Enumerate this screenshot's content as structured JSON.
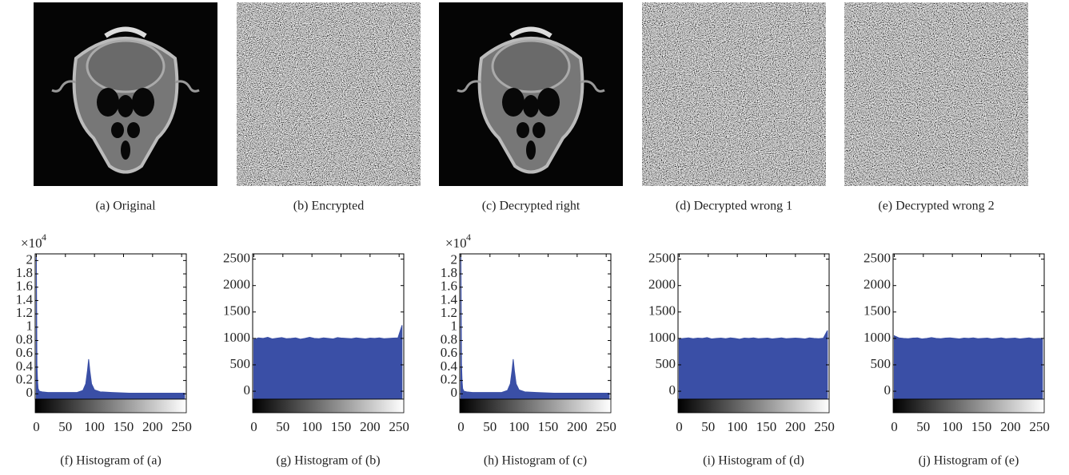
{
  "images": [
    {
      "caption": "(a)  Original",
      "kind": "ct-scan"
    },
    {
      "caption": "(b)  Encrypted",
      "kind": "noise"
    },
    {
      "caption": "(c)  Decrypted right",
      "kind": "ct-scan"
    },
    {
      "caption": "(d)  Decrypted wrong 1",
      "kind": "noise"
    },
    {
      "caption": "(e)  Decrypted wrong 2",
      "kind": "noise"
    }
  ],
  "chart_data": [
    {
      "type": "area",
      "caption": "(f)  Histogram of (a)",
      "y_scale_label": "×10",
      "y_scale_exponent": "4",
      "color": "#3a4fa6",
      "x": [
        0,
        1,
        2,
        3,
        5,
        10,
        20,
        40,
        60,
        70,
        80,
        85,
        88,
        90,
        92,
        95,
        100,
        110,
        130,
        160,
        200,
        255
      ],
      "values": [
        2.1,
        0.45,
        0.2,
        0.08,
        0.04,
        0.03,
        0.02,
        0.02,
        0.02,
        0.02,
        0.05,
        0.15,
        0.35,
        0.52,
        0.35,
        0.15,
        0.06,
        0.03,
        0.02,
        0.01,
        0.01,
        0.01
      ],
      "xlim": [
        -2,
        258
      ],
      "xticks": [
        0,
        50,
        100,
        150,
        200,
        250
      ],
      "ylim": [
        -0.08,
        2.1
      ],
      "yticks": [
        0,
        0.2,
        0.4,
        0.6,
        0.8,
        1,
        1.2,
        1.4,
        1.6,
        1.8,
        2
      ]
    },
    {
      "type": "area",
      "caption": "(g)  Histogram of (b)",
      "color": "#3a4fa6",
      "x": [
        0,
        8,
        16,
        24,
        32,
        40,
        48,
        56,
        64,
        72,
        80,
        88,
        96,
        104,
        112,
        120,
        128,
        136,
        144,
        152,
        160,
        168,
        176,
        184,
        192,
        200,
        208,
        216,
        224,
        232,
        240,
        248,
        255
      ],
      "values": [
        980,
        1010,
        1000,
        1020,
        990,
        1005,
        1015,
        995,
        1000,
        1010,
        985,
        1000,
        1020,
        1000,
        995,
        1010,
        1000,
        990,
        1015,
        1005,
        1000,
        995,
        1010,
        1000,
        990,
        1005,
        1000,
        1010,
        995,
        1000,
        1005,
        1010,
        1250
      ],
      "xlim": [
        -2,
        258
      ],
      "xticks": [
        0,
        50,
        100,
        150,
        200,
        250
      ],
      "ylim": [
        -150,
        2600
      ],
      "yticks": [
        0,
        500,
        1000,
        1500,
        2000,
        2500
      ]
    },
    {
      "type": "area",
      "caption": "(h)  Histogram of (c)",
      "y_scale_label": "×10",
      "y_scale_exponent": "4",
      "color": "#3a4fa6",
      "x": [
        0,
        1,
        2,
        3,
        5,
        10,
        20,
        40,
        60,
        70,
        80,
        85,
        88,
        90,
        92,
        95,
        100,
        110,
        130,
        160,
        200,
        255
      ],
      "values": [
        2.1,
        0.45,
        0.2,
        0.08,
        0.04,
        0.03,
        0.02,
        0.02,
        0.02,
        0.02,
        0.05,
        0.15,
        0.35,
        0.52,
        0.35,
        0.15,
        0.06,
        0.03,
        0.02,
        0.01,
        0.01,
        0.01
      ],
      "xlim": [
        -2,
        258
      ],
      "xticks": [
        0,
        50,
        100,
        150,
        200,
        250
      ],
      "ylim": [
        -0.08,
        2.1
      ],
      "yticks": [
        0,
        0.2,
        0.4,
        0.6,
        0.8,
        1,
        1.2,
        1.4,
        1.6,
        1.8,
        2
      ]
    },
    {
      "type": "area",
      "caption": "(i)  Histogram of (d)",
      "color": "#3a4fa6",
      "x": [
        0,
        8,
        16,
        24,
        32,
        40,
        48,
        56,
        64,
        72,
        80,
        88,
        96,
        104,
        112,
        120,
        128,
        136,
        144,
        152,
        160,
        168,
        176,
        184,
        192,
        200,
        208,
        216,
        224,
        232,
        240,
        248,
        255
      ],
      "values": [
        990,
        1000,
        1010,
        995,
        1005,
        1000,
        1015,
        990,
        1000,
        1005,
        995,
        1010,
        1000,
        985,
        1005,
        1000,
        1010,
        995,
        1000,
        1005,
        990,
        1000,
        1010,
        995,
        1000,
        1005,
        1000,
        990,
        1010,
        1000,
        995,
        1005,
        1150
      ],
      "xlim": [
        -2,
        258
      ],
      "xticks": [
        0,
        50,
        100,
        150,
        200,
        250
      ],
      "ylim": [
        -150,
        2600
      ],
      "yticks": [
        0,
        500,
        1000,
        1500,
        2000,
        2500
      ]
    },
    {
      "type": "area",
      "caption": "(j)  Histogram of (e)",
      "color": "#3a4fa6",
      "x": [
        0,
        8,
        16,
        24,
        32,
        40,
        48,
        56,
        64,
        72,
        80,
        88,
        96,
        104,
        112,
        120,
        128,
        136,
        144,
        152,
        160,
        168,
        176,
        184,
        192,
        200,
        208,
        216,
        224,
        232,
        240,
        248,
        255
      ],
      "values": [
        1050,
        1010,
        1000,
        995,
        1005,
        1010,
        990,
        1000,
        1015,
        1000,
        995,
        1005,
        1010,
        1000,
        990,
        1005,
        1000,
        1010,
        995,
        1000,
        1005,
        990,
        1000,
        1010,
        995,
        1000,
        1005,
        990,
        1000,
        1010,
        995,
        1000,
        1000
      ],
      "xlim": [
        -2,
        258
      ],
      "xticks": [
        0,
        50,
        100,
        150,
        200,
        250
      ],
      "ylim": [
        -150,
        2600
      ],
      "yticks": [
        0,
        500,
        1000,
        1500,
        2000,
        2500
      ]
    }
  ]
}
